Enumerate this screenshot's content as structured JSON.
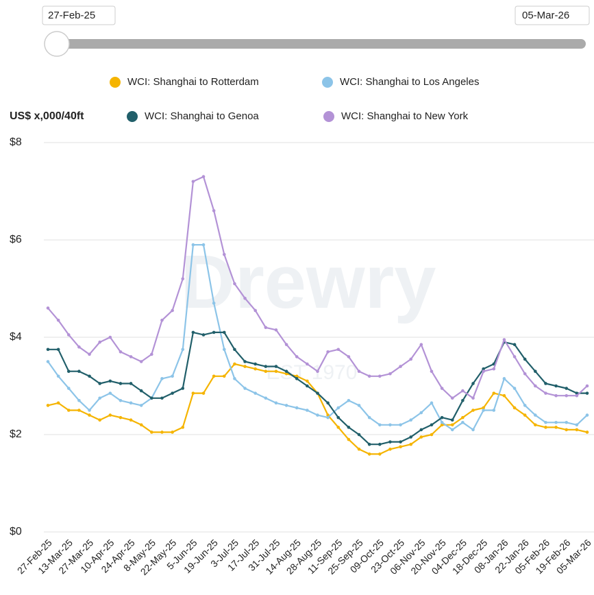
{
  "slider": {
    "start": "27-Feb-25",
    "end": "05-Mar-26"
  },
  "watermark": {
    "brand": "Drewry",
    "established": "EST 1970"
  },
  "chart_data": {
    "type": "line",
    "y_axis_label": "US$ x,000/40ft",
    "categories": [
      "27-Feb-25",
      null,
      "13-Mar-25",
      null,
      "27-Mar-25",
      null,
      "10-Apr-25",
      null,
      "24-Apr-25",
      null,
      "8-May-25",
      null,
      "22-May-25",
      null,
      "5-Jun-25",
      null,
      "19-Jun-25",
      null,
      "3-Jul-25",
      null,
      "17-Jul-25",
      null,
      "31-Jul-25",
      null,
      "14-Aug-25",
      null,
      "28-Aug-25",
      null,
      "11-Sep-25",
      null,
      "25-Sep-25",
      null,
      "09-Oct-25",
      null,
      "23-Oct-25",
      null,
      "06-Nov-25",
      null,
      "20-Nov-25",
      null,
      "04-Dec-25",
      null,
      "18-Dec-25",
      null,
      "08-Jan-26",
      null,
      "22-Jan-26",
      null,
      "05-Feb-26",
      null,
      "19-Feb-26",
      null,
      "05-Mar-26"
    ],
    "ylim": [
      0,
      8
    ],
    "yticks": [
      {
        "value": 0,
        "label": "$0"
      },
      {
        "value": 2,
        "label": "$2"
      },
      {
        "value": 4,
        "label": "$4"
      },
      {
        "value": 6,
        "label": "$6"
      },
      {
        "value": 8,
        "label": "$8"
      }
    ],
    "grid": true,
    "series": [
      {
        "name": "WCI: Shanghai to Rotterdam",
        "color": "#f5b400",
        "values": [
          2.6,
          2.65,
          2.5,
          2.5,
          2.4,
          2.3,
          2.4,
          2.35,
          2.3,
          2.2,
          2.05,
          2.05,
          2.05,
          2.15,
          2.85,
          2.85,
          3.2,
          3.2,
          3.45,
          3.4,
          3.35,
          3.3,
          3.3,
          3.25,
          3.2,
          3.1,
          2.85,
          2.4,
          2.15,
          1.9,
          1.7,
          1.6,
          1.6,
          1.7,
          1.75,
          1.8,
          1.95,
          2.0,
          2.2,
          2.2,
          2.35,
          2.5,
          2.55,
          2.85,
          2.8,
          2.55,
          2.4,
          2.2,
          2.15,
          2.15,
          2.1,
          2.1,
          2.05
        ]
      },
      {
        "name": "WCI: Shanghai to Los Angeles",
        "color": "#8cc4e8",
        "values": [
          3.5,
          3.2,
          2.95,
          2.7,
          2.5,
          2.75,
          2.85,
          2.7,
          2.65,
          2.6,
          2.75,
          3.15,
          3.2,
          3.75,
          5.9,
          5.9,
          4.7,
          3.75,
          3.15,
          2.95,
          2.85,
          2.75,
          2.65,
          2.6,
          2.55,
          2.5,
          2.4,
          2.35,
          2.55,
          2.7,
          2.6,
          2.35,
          2.2,
          2.2,
          2.2,
          2.3,
          2.45,
          2.65,
          2.25,
          2.1,
          2.25,
          2.1,
          2.5,
          2.5,
          3.15,
          2.95,
          2.6,
          2.4,
          2.25,
          2.25,
          2.25,
          2.2,
          2.4
        ]
      },
      {
        "name": "WCI: Shanghai to Genoa",
        "color": "#215f6a",
        "values": [
          3.75,
          3.75,
          3.3,
          3.3,
          3.2,
          3.05,
          3.1,
          3.05,
          3.05,
          2.9,
          2.75,
          2.75,
          2.85,
          2.95,
          4.1,
          4.05,
          4.1,
          4.1,
          3.75,
          3.5,
          3.45,
          3.4,
          3.4,
          3.3,
          3.15,
          3.0,
          2.85,
          2.65,
          2.35,
          2.15,
          2.0,
          1.8,
          1.8,
          1.85,
          1.85,
          1.95,
          2.1,
          2.2,
          2.35,
          2.3,
          2.7,
          3.05,
          3.35,
          3.45,
          3.9,
          3.85,
          3.55,
          3.3,
          3.05,
          3.0,
          2.95,
          2.85,
          2.85
        ]
      },
      {
        "name": "WCI: Shanghai to New York",
        "color": "#b392d6",
        "values": [
          4.6,
          4.35,
          4.05,
          3.8,
          3.65,
          3.9,
          4.0,
          3.7,
          3.6,
          3.5,
          3.65,
          4.35,
          4.55,
          5.2,
          7.2,
          7.3,
          6.6,
          5.7,
          5.1,
          4.8,
          4.55,
          4.2,
          4.15,
          3.85,
          3.6,
          3.45,
          3.3,
          3.7,
          3.75,
          3.6,
          3.3,
          3.2,
          3.2,
          3.25,
          3.4,
          3.55,
          3.85,
          3.3,
          2.95,
          2.75,
          2.9,
          2.75,
          3.3,
          3.35,
          3.95,
          3.6,
          3.25,
          3.0,
          2.85,
          2.8,
          2.8,
          2.8,
          3.0
        ]
      }
    ]
  }
}
